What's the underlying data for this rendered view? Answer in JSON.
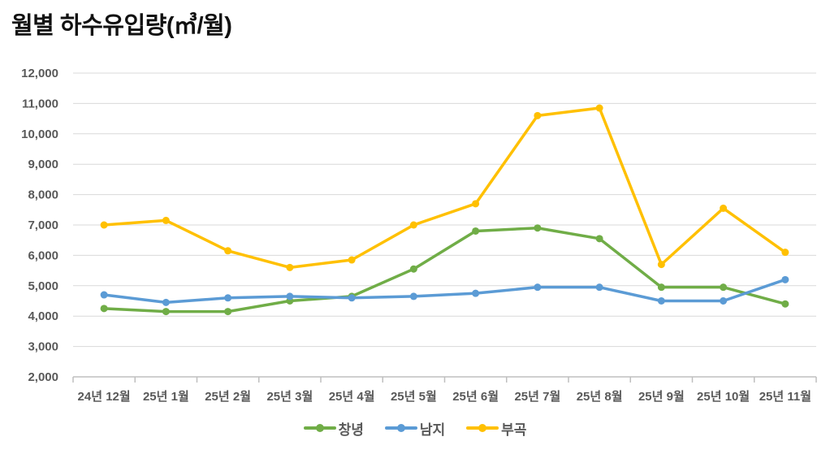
{
  "chart_data": {
    "type": "line",
    "title": "월별 하수유입량(㎥/월)",
    "categories": [
      "24년 12월",
      "25년 1월",
      "25년 2월",
      "25년 3월",
      "25년 4월",
      "25년 5월",
      "25년 6월",
      "25년 7월",
      "25년 8월",
      "25년 9월",
      "25년 10월",
      "25년 11월"
    ],
    "series": [
      {
        "name": "창녕",
        "color": "#70ad47",
        "values": [
          4250,
          4150,
          4150,
          4500,
          4650,
          5550,
          6800,
          6900,
          6550,
          4950,
          4950,
          4400
        ]
      },
      {
        "name": "남지",
        "color": "#5b9bd5",
        "values": [
          4700,
          4450,
          4600,
          4650,
          4600,
          4650,
          4750,
          4950,
          4950,
          4500,
          4500,
          5200
        ]
      },
      {
        "name": "부곡",
        "color": "#ffc000",
        "values": [
          7000,
          7150,
          6150,
          5600,
          5850,
          7000,
          7700,
          10600,
          10850,
          5700,
          7550,
          6100
        ]
      }
    ],
    "ylim": [
      2000,
      12000
    ],
    "y_tick_step": 1000,
    "y_tick_values": [
      2000,
      3000,
      4000,
      5000,
      6000,
      7000,
      8000,
      9000,
      10000,
      11000,
      12000
    ],
    "y_tick_labels": [
      "2,000",
      "3,000",
      "4,000",
      "5,000",
      "6,000",
      "7,000",
      "8,000",
      "9,000",
      "10,000",
      "11,000",
      "12,000"
    ],
    "grid": "horizontal",
    "legend_position": "bottom",
    "colors": {
      "title_text": "#111111",
      "axis_text": "#595959",
      "gridline": "#d9d9d9",
      "axis_line": "#bfbfbf",
      "background": "#ffffff"
    }
  }
}
